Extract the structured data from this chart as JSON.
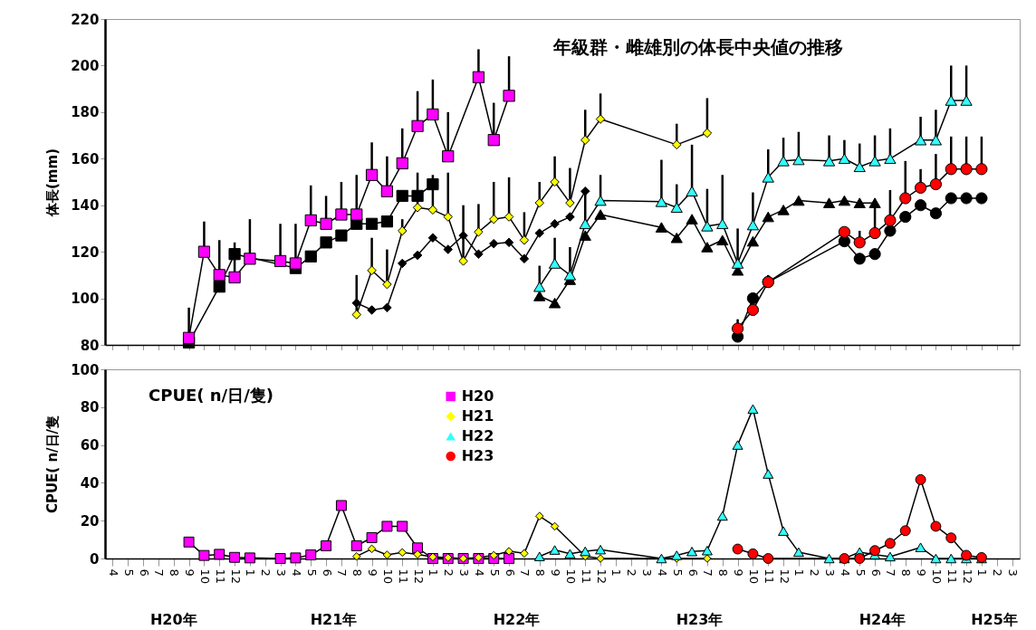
{
  "chart_data": [
    {
      "type": "line",
      "title": "年級群・雌雄別の体長中央値の推移",
      "ylabel": "体長(mm)",
      "ylim": [
        80,
        220
      ],
      "yticks": [
        80,
        100,
        120,
        140,
        160,
        180,
        200,
        220
      ],
      "tick_labels": "y",
      "grid": false,
      "legend": false,
      "categories": [
        "4",
        "5",
        "6",
        "7",
        "8",
        "9",
        "10",
        "11",
        "12",
        "1",
        "2",
        "3",
        "4",
        "5",
        "6",
        "7",
        "8",
        "9",
        "10",
        "11",
        "12",
        "1",
        "2",
        "3",
        "4",
        "5",
        "6",
        "7",
        "8",
        "9",
        "10",
        "11",
        "12",
        "1",
        "2",
        "3",
        "4",
        "5",
        "6",
        "7",
        "8",
        "9",
        "10",
        "11",
        "12",
        "1",
        "2",
        "3",
        "4",
        "5",
        "6",
        "7",
        "8",
        "9",
        "10",
        "11",
        "12",
        "1",
        "2",
        "3"
      ],
      "series": [
        {
          "color": "#ff00ff",
          "marker": "square",
          "values": [
            null,
            null,
            null,
            null,
            null,
            83,
            120,
            110,
            109,
            117,
            null,
            116,
            115,
            133.5,
            132,
            136,
            136,
            153,
            146,
            158,
            174,
            179,
            161,
            null,
            195,
            168,
            187,
            null,
            null,
            null,
            null,
            null,
            null,
            null,
            null,
            null,
            null,
            null,
            null,
            null,
            null,
            null,
            null,
            null,
            null,
            null,
            null,
            null,
            null,
            null,
            null,
            null,
            null,
            null,
            null,
            null,
            null,
            null,
            null,
            null
          ],
          "errors": [
            null,
            null,
            null,
            null,
            null,
            [
              83,
              96
            ],
            [
              120,
              133
            ],
            [
              110,
              125
            ],
            [
              109,
              124
            ],
            [
              117,
              134
            ],
            null,
            [
              116,
              132
            ],
            [
              115,
              132
            ],
            [
              133.5,
              148.5
            ],
            [
              132,
              144
            ],
            [
              136,
              150
            ],
            [
              136,
              153
            ],
            [
              153,
              167
            ],
            [
              146,
              161
            ],
            [
              158,
              173
            ],
            [
              174,
              189
            ],
            [
              179,
              194
            ],
            [
              161,
              180
            ],
            null,
            [
              195,
              207
            ],
            [
              168,
              184
            ],
            [
              187,
              204
            ],
            null,
            null,
            null,
            null,
            null,
            null,
            null,
            null,
            null,
            null,
            null,
            null,
            null,
            null,
            null,
            null,
            null,
            null,
            null,
            null,
            null,
            null,
            null,
            null,
            null,
            null,
            null,
            null,
            null,
            null,
            null,
            null,
            null
          ]
        },
        {
          "color": "#000000",
          "marker": "square",
          "values": [
            null,
            null,
            null,
            null,
            null,
            81,
            null,
            105,
            119,
            null,
            null,
            null,
            113,
            118,
            124,
            127,
            132,
            132,
            133,
            144,
            144,
            149,
            null,
            null,
            null,
            null,
            null,
            null,
            null,
            null,
            null,
            null,
            null,
            null,
            null,
            null,
            null,
            null,
            null,
            null,
            null,
            null,
            null,
            null,
            null,
            null,
            null,
            null,
            null,
            null,
            null,
            null,
            null,
            null,
            null,
            null,
            null,
            null,
            null,
            null
          ]
        },
        {
          "color": "#ffff00",
          "marker": "diamond",
          "values": [
            null,
            null,
            null,
            null,
            null,
            null,
            null,
            null,
            null,
            null,
            null,
            null,
            null,
            null,
            null,
            null,
            93,
            112,
            106,
            129,
            139,
            138,
            135,
            116,
            128.5,
            134,
            135,
            125,
            141,
            150,
            141,
            168,
            177,
            null,
            null,
            null,
            null,
            166,
            null,
            171,
            null,
            null,
            null,
            null,
            null,
            null,
            null,
            null,
            null,
            null,
            null,
            null,
            null,
            null,
            null,
            null,
            null,
            null,
            null,
            null
          ],
          "errors": [
            null,
            null,
            null,
            null,
            null,
            null,
            null,
            null,
            null,
            null,
            null,
            null,
            null,
            null,
            null,
            null,
            [
              93,
              110
            ],
            [
              112,
              126
            ],
            [
              106,
              121
            ],
            [
              129,
              134
            ],
            [
              139,
              154
            ],
            [
              138,
              153
            ],
            [
              135,
              154
            ],
            [
              116,
              140
            ],
            [
              128.5,
              140.5
            ],
            [
              134,
              150
            ],
            [
              135,
              152
            ],
            [
              125,
              137
            ],
            [
              141,
              150
            ],
            [
              150,
              161
            ],
            [
              141,
              156
            ],
            [
              168,
              181
            ],
            [
              177,
              188
            ],
            null,
            null,
            null,
            null,
            [
              166,
              175
            ],
            null,
            [
              171,
              186
            ],
            null,
            null,
            null,
            null,
            null,
            null,
            null,
            null,
            null,
            null,
            null,
            null,
            null,
            null,
            null,
            null,
            null,
            null,
            null,
            null
          ]
        },
        {
          "color": "#000000",
          "marker": "diamond",
          "values": [
            null,
            null,
            null,
            null,
            null,
            null,
            null,
            null,
            null,
            null,
            null,
            null,
            null,
            null,
            null,
            null,
            98,
            95,
            96,
            115,
            118.5,
            126,
            121,
            127,
            119,
            123.5,
            124,
            117,
            128,
            132,
            135,
            146,
            null,
            null,
            null,
            null,
            null,
            null,
            null,
            null,
            null,
            null,
            null,
            null,
            null,
            null,
            null,
            null,
            null,
            null,
            null,
            null,
            null,
            null,
            null,
            null,
            null,
            null,
            null,
            null
          ]
        },
        {
          "color": "#33ffff",
          "marker": "triangle",
          "values": [
            null,
            null,
            null,
            null,
            null,
            null,
            null,
            null,
            null,
            null,
            null,
            null,
            null,
            null,
            null,
            null,
            null,
            null,
            null,
            null,
            null,
            null,
            null,
            null,
            null,
            null,
            null,
            null,
            105,
            115,
            110,
            132,
            142,
            null,
            null,
            null,
            141.5,
            139,
            146,
            131,
            132,
            115,
            131.5,
            152,
            159,
            159.5,
            null,
            159,
            160,
            156.5,
            159,
            160,
            null,
            168,
            168,
            185,
            185,
            null,
            null,
            null
          ],
          "errors": [
            null,
            null,
            null,
            null,
            null,
            null,
            null,
            null,
            null,
            null,
            null,
            null,
            null,
            null,
            null,
            null,
            null,
            null,
            null,
            null,
            null,
            null,
            null,
            null,
            null,
            null,
            null,
            null,
            [
              105,
              114
            ],
            [
              115,
              126
            ],
            [
              110,
              122
            ],
            [
              132,
              146
            ],
            [
              142,
              153
            ],
            null,
            null,
            null,
            [
              141.5,
              159.5
            ],
            [
              139,
              149
            ],
            [
              146,
              166
            ],
            [
              131,
              147
            ],
            [
              132,
              153
            ],
            [
              115,
              130
            ],
            [
              131.5,
              145.5
            ],
            [
              152,
              164
            ],
            [
              159,
              169
            ],
            [
              159.5,
              171.5
            ],
            null,
            [
              159,
              170
            ],
            [
              160,
              168
            ],
            [
              156.5,
              166.5
            ],
            [
              159,
              170
            ],
            [
              160,
              173
            ],
            null,
            [
              168,
              178
            ],
            [
              168,
              181
            ],
            [
              185,
              200
            ],
            [
              185,
              200
            ],
            null,
            null,
            null
          ]
        },
        {
          "color": "#000000",
          "marker": "triangle",
          "values": [
            null,
            null,
            null,
            null,
            null,
            null,
            null,
            null,
            null,
            null,
            null,
            null,
            null,
            null,
            null,
            null,
            null,
            null,
            null,
            null,
            null,
            null,
            null,
            null,
            null,
            null,
            null,
            null,
            101,
            98,
            108,
            127,
            136,
            null,
            null,
            null,
            130.5,
            126,
            134,
            122,
            125,
            112,
            124.5,
            135,
            138,
            142,
            null,
            141,
            142,
            141,
            141,
            null,
            null,
            null,
            null,
            null,
            null,
            null,
            null,
            null
          ]
        },
        {
          "color": "#ff0000",
          "marker": "circle",
          "values": [
            null,
            null,
            null,
            null,
            null,
            null,
            null,
            null,
            null,
            null,
            null,
            null,
            null,
            null,
            null,
            null,
            null,
            null,
            null,
            null,
            null,
            null,
            null,
            null,
            null,
            null,
            null,
            null,
            null,
            null,
            null,
            null,
            null,
            null,
            null,
            null,
            null,
            null,
            null,
            null,
            null,
            87,
            95,
            107,
            null,
            null,
            null,
            null,
            128.5,
            124,
            128,
            133.5,
            143,
            147.5,
            149,
            155.5,
            155.5,
            155.5,
            null,
            null
          ],
          "errors": [
            null,
            null,
            null,
            null,
            null,
            null,
            null,
            null,
            null,
            null,
            null,
            null,
            null,
            null,
            null,
            null,
            null,
            null,
            null,
            null,
            null,
            null,
            null,
            null,
            null,
            null,
            null,
            null,
            null,
            null,
            null,
            null,
            null,
            null,
            null,
            null,
            null,
            null,
            null,
            null,
            null,
            [
              87,
              91
            ],
            null,
            [
              107,
              110
            ],
            null,
            null,
            null,
            null,
            null,
            [
              124,
              129
            ],
            [
              128,
              141
            ],
            [
              133.5,
              146.5
            ],
            [
              143,
              159
            ],
            [
              147.5,
              155.5
            ],
            [
              149,
              162
            ],
            [
              155.5,
              169.5
            ],
            [
              155.5,
              169.5
            ],
            [
              155.5,
              169.5
            ],
            null,
            null
          ]
        },
        {
          "color": "#000000",
          "marker": "circle",
          "values": [
            null,
            null,
            null,
            null,
            null,
            null,
            null,
            null,
            null,
            null,
            null,
            null,
            null,
            null,
            null,
            null,
            null,
            null,
            null,
            null,
            null,
            null,
            null,
            null,
            null,
            null,
            null,
            null,
            null,
            null,
            null,
            null,
            null,
            null,
            null,
            null,
            null,
            null,
            null,
            null,
            null,
            83.5,
            100,
            107,
            null,
            null,
            null,
            null,
            124.5,
            117,
            119,
            129,
            135,
            140,
            136.5,
            143,
            143,
            143,
            null,
            null
          ]
        }
      ]
    },
    {
      "type": "line",
      "title": "CPUE( n/日/隻)",
      "ylabel": "CPUE( n/日/隻",
      "ylim": [
        0,
        100
      ],
      "yticks": [
        0,
        20,
        40,
        60,
        80,
        100
      ],
      "grid": false,
      "legend": "top",
      "annotations": [
        "H20年",
        "H21年",
        "H22年",
        "H23年",
        "H24年",
        "H25年"
      ],
      "categories": [
        "4",
        "5",
        "6",
        "7",
        "8",
        "9",
        "10",
        "11",
        "12",
        "1",
        "2",
        "3",
        "4",
        "5",
        "6",
        "7",
        "8",
        "9",
        "10",
        "11",
        "12",
        "1",
        "2",
        "3",
        "4",
        "5",
        "6",
        "7",
        "8",
        "9",
        "10",
        "11",
        "12",
        "1",
        "2",
        "3",
        "4",
        "5",
        "6",
        "7",
        "8",
        "9",
        "10",
        "11",
        "12",
        "1",
        "2",
        "3",
        "4",
        "5",
        "6",
        "7",
        "8",
        "9",
        "10",
        "11",
        "12",
        "1",
        "2",
        "3"
      ],
      "series": [
        {
          "name": "H20",
          "color": "#ff00ff",
          "marker": "square",
          "values": [
            null,
            null,
            null,
            null,
            null,
            8.7,
            1.6,
            2.2,
            0.6,
            0.3,
            null,
            0,
            0.3,
            1.9,
            6.7,
            28,
            6.7,
            11,
            17,
            17,
            5.6,
            0,
            0,
            0,
            0,
            0,
            0,
            null,
            null,
            null,
            null,
            null,
            null,
            null,
            null,
            null,
            null,
            null,
            null,
            null,
            null,
            null,
            null,
            null,
            null,
            null,
            null,
            null,
            null,
            null,
            null,
            null,
            null,
            null,
            null,
            null,
            null,
            null,
            null,
            null
          ]
        },
        {
          "name": "H21",
          "color": "#ffff00",
          "marker": "diamond",
          "values": [
            null,
            null,
            null,
            null,
            null,
            null,
            null,
            null,
            null,
            null,
            null,
            null,
            null,
            null,
            null,
            null,
            1.1,
            5.1,
            1.9,
            3.2,
            2.2,
            0.8,
            0.5,
            0,
            0.5,
            1.7,
            3.8,
            2.7,
            22.4,
            17,
            null,
            1.2,
            0,
            null,
            null,
            null,
            null,
            0,
            null,
            0,
            null,
            null,
            null,
            null,
            null,
            null,
            null,
            null,
            null,
            null,
            null,
            null,
            null,
            null,
            null,
            null,
            null,
            null,
            null,
            null
          ]
        },
        {
          "name": "H22",
          "color": "#33ffff",
          "marker": "triangle",
          "values": [
            null,
            null,
            null,
            null,
            null,
            null,
            null,
            null,
            null,
            null,
            null,
            null,
            null,
            null,
            null,
            null,
            null,
            null,
            null,
            null,
            null,
            null,
            null,
            null,
            null,
            null,
            null,
            null,
            1.1,
            4.5,
            2.5,
            3.8,
            4.7,
            null,
            null,
            null,
            0,
            1.7,
            3.7,
            4.2,
            22.5,
            60,
            79,
            44.7,
            14.5,
            3.4,
            null,
            0,
            0,
            3.4,
            2,
            1,
            null,
            5.9,
            0,
            0,
            0,
            0,
            null,
            null
          ]
        },
        {
          "name": "H23",
          "color": "#ff0000",
          "marker": "circle",
          "values": [
            null,
            null,
            null,
            null,
            null,
            null,
            null,
            null,
            null,
            null,
            null,
            null,
            null,
            null,
            null,
            null,
            null,
            null,
            null,
            null,
            null,
            null,
            null,
            null,
            null,
            null,
            null,
            null,
            null,
            null,
            null,
            null,
            null,
            null,
            null,
            null,
            null,
            null,
            null,
            null,
            null,
            5,
            2.5,
            0,
            null,
            null,
            null,
            null,
            0,
            0,
            4.2,
            8,
            14.7,
            41.7,
            17,
            10.9,
            1.7,
            0.5,
            null,
            null
          ]
        }
      ]
    }
  ]
}
